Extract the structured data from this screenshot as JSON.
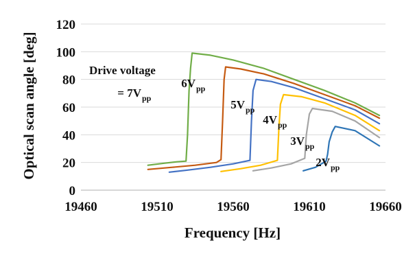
{
  "chart_data": {
    "type": "line",
    "title": "",
    "xlabel": "Frequency  [Hz]",
    "ylabel": "Optical scan angle [deg]",
    "xlim": [
      19460,
      19660
    ],
    "ylim": [
      0,
      120
    ],
    "xticks": [
      19460,
      19510,
      19560,
      19610,
      19660
    ],
    "yticks": [
      0,
      20,
      40,
      60,
      80,
      100,
      120
    ],
    "grid": "horizontal",
    "legend": "none",
    "series": [
      {
        "name": "7Vpp",
        "color": "#70ad47",
        "points": [
          [
            19504,
            18
          ],
          [
            19515,
            19.5
          ],
          [
            19523,
            20.5
          ],
          [
            19529,
            21
          ],
          [
            19530,
            40
          ],
          [
            19531,
            72
          ],
          [
            19532,
            88
          ],
          [
            19533,
            99
          ],
          [
            19545,
            97.5
          ],
          [
            19560,
            94
          ],
          [
            19580,
            88
          ],
          [
            19600,
            80
          ],
          [
            19620,
            72
          ],
          [
            19640,
            63
          ],
          [
            19656,
            54
          ]
        ]
      },
      {
        "name": "6Vpp",
        "color": "#c55a11",
        "points": [
          [
            19504,
            15
          ],
          [
            19520,
            16.5
          ],
          [
            19535,
            18
          ],
          [
            19549,
            20
          ],
          [
            19552,
            22
          ],
          [
            19553,
            50
          ],
          [
            19554,
            80
          ],
          [
            19555,
            89
          ],
          [
            19565,
            87.5
          ],
          [
            19580,
            84
          ],
          [
            19600,
            77
          ],
          [
            19620,
            69
          ],
          [
            19640,
            61
          ],
          [
            19656,
            52
          ]
        ]
      },
      {
        "name": "5Vpp",
        "color": "#4472c4",
        "points": [
          [
            19518,
            13
          ],
          [
            19530,
            14.5
          ],
          [
            19545,
            16.5
          ],
          [
            19560,
            19
          ],
          [
            19571,
            21.5
          ],
          [
            19572,
            50
          ],
          [
            19573,
            72
          ],
          [
            19575,
            80
          ],
          [
            19585,
            78.5
          ],
          [
            19600,
            74
          ],
          [
            19620,
            66
          ],
          [
            19640,
            58
          ],
          [
            19656,
            48
          ]
        ]
      },
      {
        "name": "4Vpp",
        "color": "#ffc000",
        "points": [
          [
            19552,
            13.5
          ],
          [
            19565,
            15.5
          ],
          [
            19578,
            18
          ],
          [
            19589,
            21.5
          ],
          [
            19590,
            45
          ],
          [
            19591,
            62
          ],
          [
            19593,
            69
          ],
          [
            19605,
            67.5
          ],
          [
            19620,
            63
          ],
          [
            19640,
            54
          ],
          [
            19656,
            43
          ]
        ]
      },
      {
        "name": "3Vpp",
        "color": "#a5a5a5",
        "points": [
          [
            19573,
            14
          ],
          [
            19585,
            16
          ],
          [
            19598,
            19
          ],
          [
            19607,
            23
          ],
          [
            19608,
            40
          ],
          [
            19610,
            55
          ],
          [
            19612,
            59
          ],
          [
            19625,
            57
          ],
          [
            19640,
            50
          ],
          [
            19656,
            38
          ]
        ]
      },
      {
        "name": "2Vpp",
        "color": "#2e75b6",
        "points": [
          [
            19606,
            14
          ],
          [
            19614,
            16.5
          ],
          [
            19621,
            21
          ],
          [
            19622,
            26
          ],
          [
            19623,
            35
          ],
          [
            19625,
            42
          ],
          [
            19627,
            46
          ],
          [
            19640,
            43
          ],
          [
            19656,
            32
          ]
        ]
      }
    ],
    "annotations": [
      {
        "id": "drive",
        "line1": "Drive voltage",
        "line2": "= 7V",
        "sub": "pp"
      },
      {
        "id": "v6",
        "main": "6V",
        "sub": "pp"
      },
      {
        "id": "v5",
        "main": "5V",
        "sub": "pp"
      },
      {
        "id": "v4",
        "main": "4V",
        "sub": "pp"
      },
      {
        "id": "v3",
        "main": "3V",
        "sub": "pp"
      },
      {
        "id": "v2",
        "main": "2V",
        "sub": "pp"
      }
    ]
  }
}
